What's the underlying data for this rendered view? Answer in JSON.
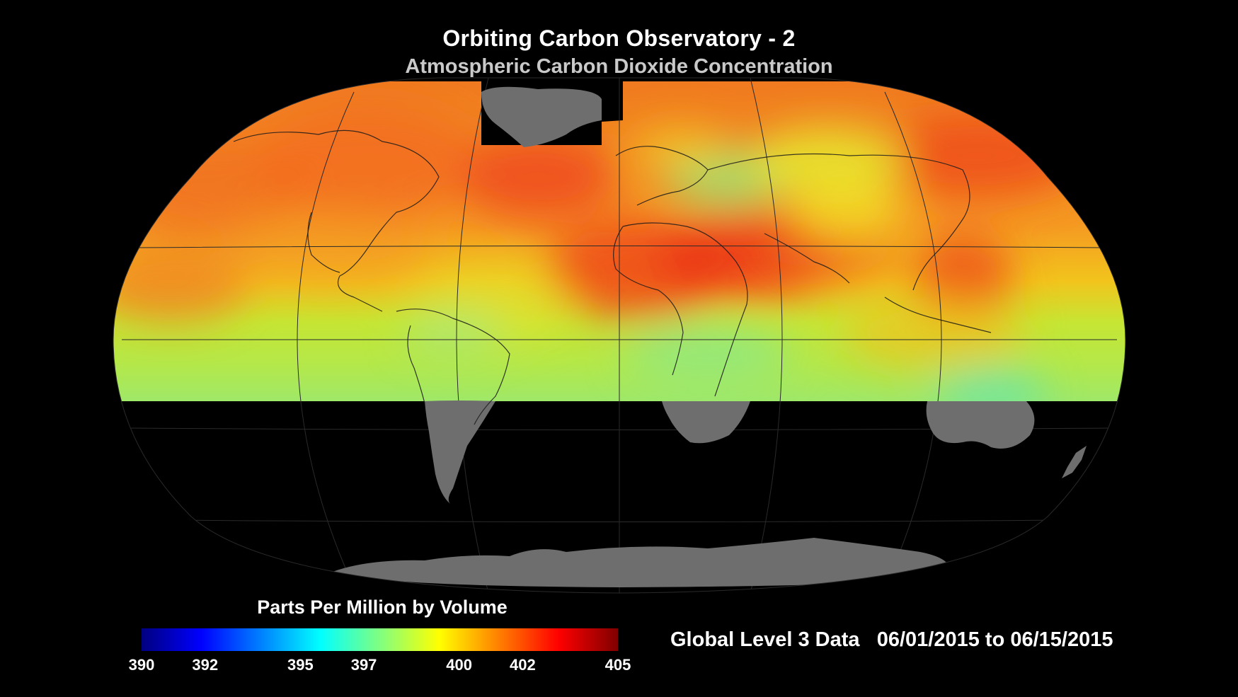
{
  "title": "Orbiting Carbon Observatory - 2",
  "subtitle": "Atmospheric Carbon Dioxide Concentration",
  "map": {
    "projection": "robinson",
    "data_band_latitudes": "approx 80N to 40S",
    "nodata_color": "#6e6e6e",
    "background_color": "#000000",
    "regions": [
      {
        "name": "high-latitude north america",
        "level_ppm": 401.5
      },
      {
        "name": "north atlantic",
        "level_ppm": 402.5
      },
      {
        "name": "central asia",
        "level_ppm": 400
      },
      {
        "name": "sahara and middle east",
        "level_ppm": 403
      },
      {
        "name": "east asia",
        "level_ppm": 402.5
      },
      {
        "name": "tropics",
        "level_ppm": 401
      },
      {
        "name": "southern band",
        "level_ppm": 398.5
      }
    ]
  },
  "colorbar": {
    "title": "Parts Per Million by Volume",
    "min": 390,
    "max": 405,
    "ticks": [
      "390",
      "392",
      "395",
      "397",
      "400",
      "402",
      "405"
    ],
    "colors": [
      "#000080",
      "#0000ff",
      "#0080ff",
      "#00ffff",
      "#80ff80",
      "#ffff00",
      "#ff8000",
      "#ff0000",
      "#800000"
    ]
  },
  "data_info": "Global Level 3 Data   06/01/2015 to 06/15/2015"
}
